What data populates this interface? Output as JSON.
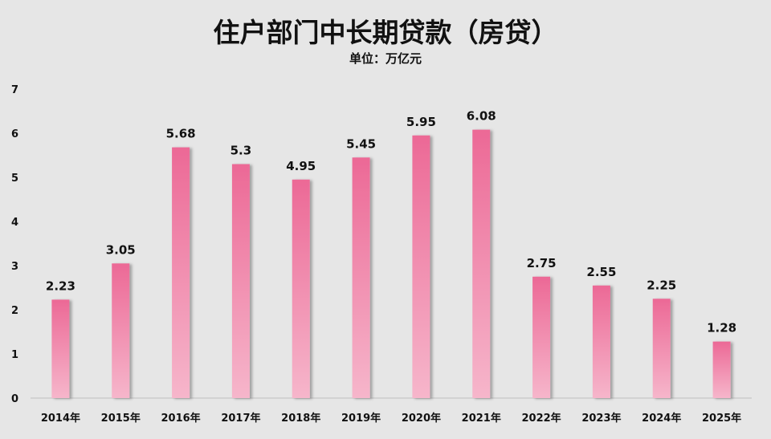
{
  "chart_data": {
    "type": "bar",
    "title": "住户部门中长期贷款（房贷）",
    "subtitle": "单位：万亿元",
    "categories": [
      "2014年",
      "2015年",
      "2016年",
      "2017年",
      "2018年",
      "2019年",
      "2020年",
      "2021年",
      "2022年",
      "2023年",
      "2024年",
      "2025年"
    ],
    "values": [
      2.23,
      3.05,
      5.68,
      5.3,
      4.95,
      5.45,
      5.95,
      6.08,
      2.75,
      2.55,
      2.25,
      1.28
    ],
    "value_labels": [
      "2.23",
      "3.05",
      "5.68",
      "5.3",
      "4.95",
      "5.45",
      "5.95",
      "6.08",
      "2.75",
      "2.55",
      "2.25",
      "1.28"
    ],
    "y_ticks": [
      "0",
      "1",
      "2",
      "3",
      "4",
      "5",
      "6",
      "7"
    ],
    "ylim": [
      0,
      7
    ],
    "grid": false,
    "legend": "none",
    "bar_color_top": "#ec6996",
    "bar_color_bottom": "#f6b6cb"
  }
}
